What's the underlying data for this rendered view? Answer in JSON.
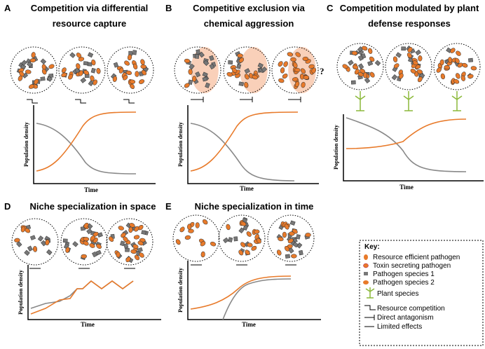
{
  "panels": [
    {
      "letter": "A",
      "title": "Competition via differential resource capture",
      "y_label": "Population density",
      "x_label": "Time"
    },
    {
      "letter": "B",
      "title": "Competitive exclusion via chemical aggression",
      "y_label": "Population density",
      "x_label": "Time",
      "annotation": "?"
    },
    {
      "letter": "C",
      "title": "Competition modulated by plant defense responses",
      "y_label": "Population density",
      "x_label": "Time"
    },
    {
      "letter": "D",
      "title": "Niche specialization in space",
      "y_label": "Population density",
      "x_label": "Time"
    },
    {
      "letter": "E",
      "title": "Niche specialization in time",
      "y_label": "Population density",
      "x_label": "Time"
    }
  ],
  "key": {
    "title": "Key:",
    "items": [
      "Resource efficient pathogen",
      "Toxin secreting pathogen",
      "Pathogen species 1",
      "Pathogen species 2",
      "Plant species",
      "Resource competition",
      "Direct antagonism",
      "Limited effects"
    ]
  }
}
